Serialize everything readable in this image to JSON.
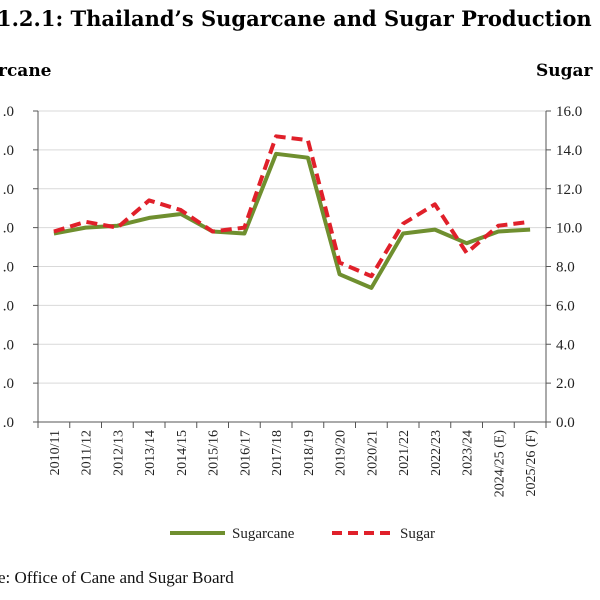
{
  "title": "1.2.1: Thailand’s Sugarcane and Sugar Production",
  "source": "e: Office of Cane and Sugar Board",
  "colors": {
    "sugarcane": "#6f8f2f",
    "sugar": "#e0202a",
    "grid": "#d9d9d9",
    "axis": "#555555"
  },
  "chart_data": {
    "type": "line",
    "categories": [
      "2010/11",
      "2011/12",
      "2012/13",
      "2013/14",
      "2014/15",
      "2015/16",
      "2016/17",
      "2017/18",
      "2018/19",
      "2019/20",
      "2020/21",
      "2021/22",
      "2022/23",
      "2023/24",
      "2024/25 (E)",
      "2025/26 (F)"
    ],
    "left_axis": {
      "label": "rcane",
      "ylim": [
        0,
        8
      ],
      "tick_labels": [
        ".0",
        ".0",
        ".0",
        ".0",
        ".0",
        ".0",
        ".0",
        ".0",
        ".0"
      ]
    },
    "right_axis": {
      "label": "Sugar",
      "ylim": [
        0,
        16
      ],
      "tick_labels": [
        "0.0",
        "2.0",
        "4.0",
        "6.0",
        "8.0",
        "10.0",
        "12.0",
        "14.0",
        "16.0"
      ]
    },
    "series": [
      {
        "name": "Sugarcane",
        "axis": "left",
        "style": "solid",
        "values": [
          4.85,
          5.0,
          5.05,
          5.25,
          5.35,
          4.9,
          4.85,
          6.9,
          6.8,
          3.8,
          3.45,
          4.85,
          4.95,
          4.6,
          4.9,
          4.95
        ]
      },
      {
        "name": "Sugar",
        "axis": "right",
        "style": "dashed",
        "values": [
          9.8,
          10.3,
          10.0,
          11.4,
          10.9,
          9.8,
          10.0,
          14.7,
          14.5,
          8.2,
          7.5,
          10.2,
          11.2,
          8.7,
          10.1,
          10.3
        ]
      }
    ],
    "grid": "horizontal",
    "legend": "bottom-center"
  }
}
